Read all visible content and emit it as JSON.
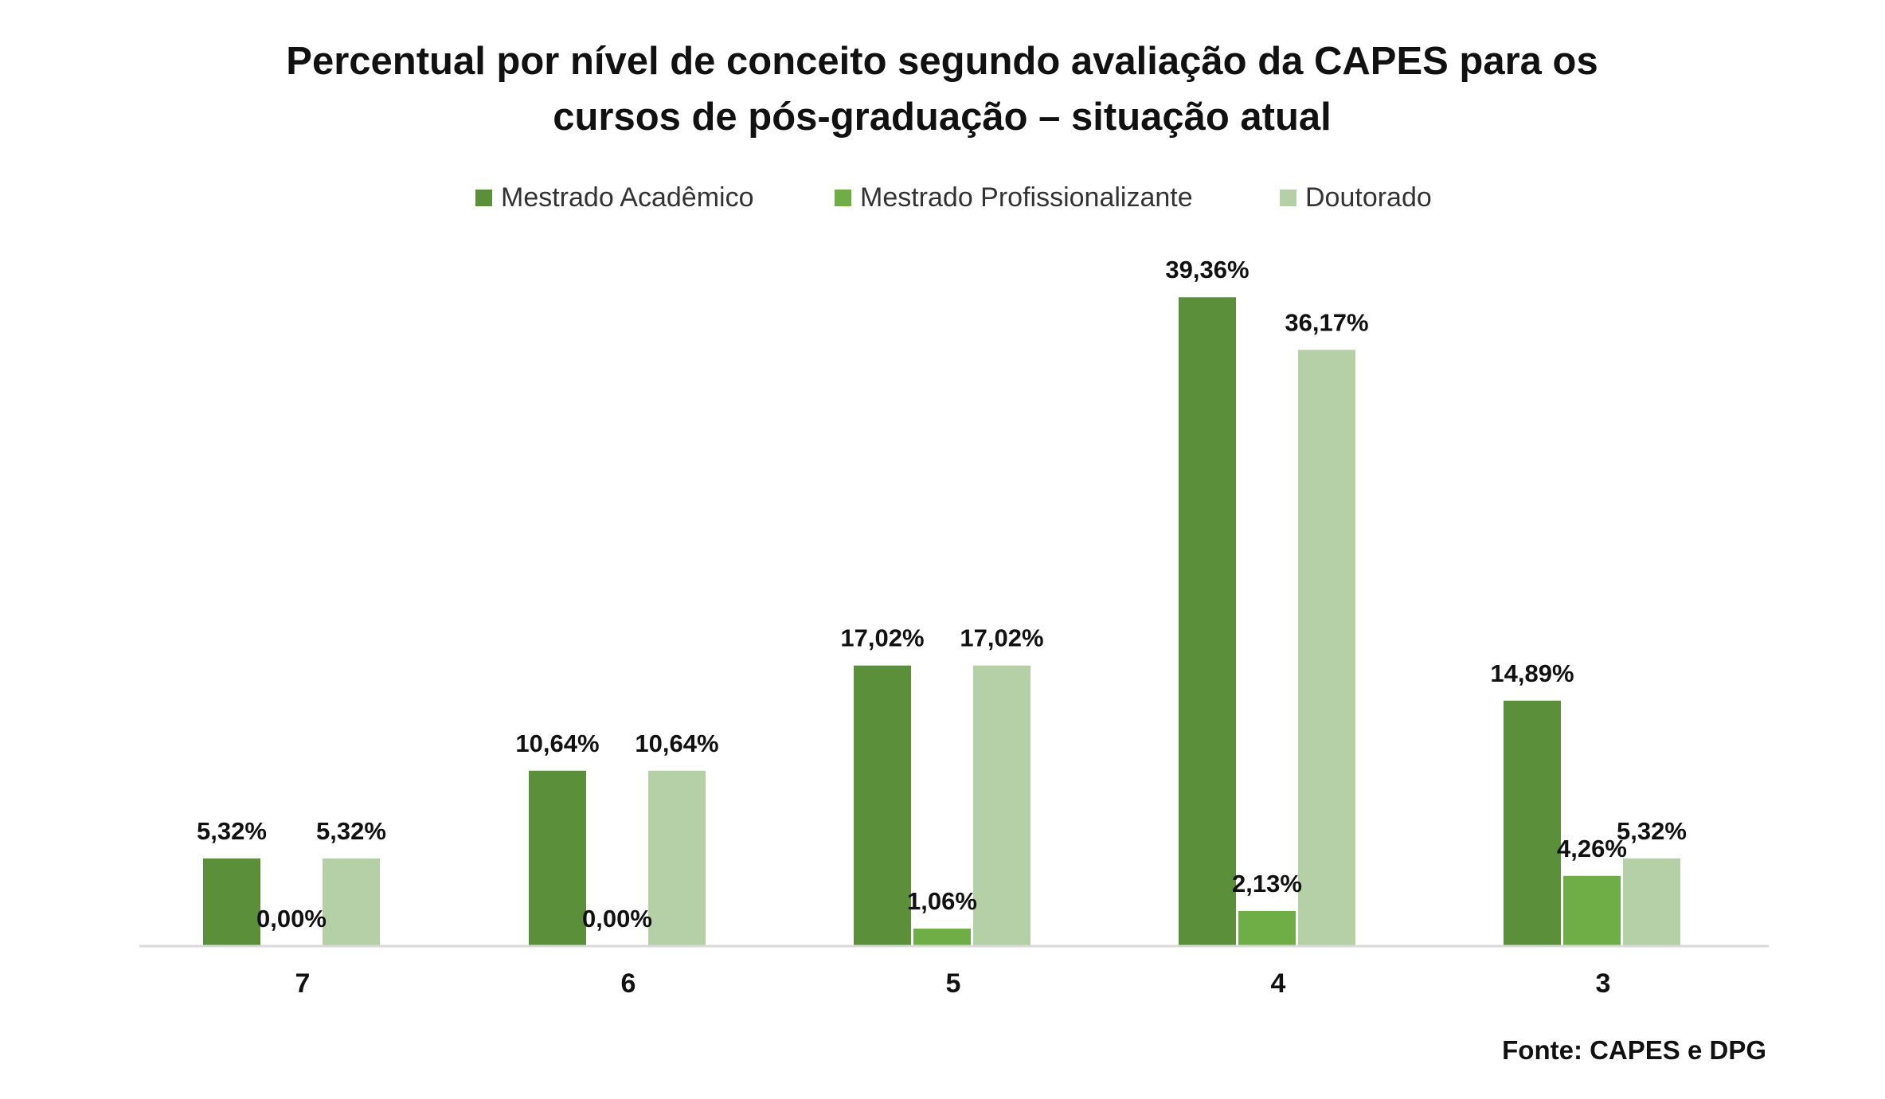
{
  "chart_data": {
    "type": "bar",
    "title": "Percentual por nível de conceito segundo avaliação da CAPES para os",
    "subtitle": "cursos de pós-graduação – situação atual",
    "categories": [
      "7",
      "6",
      "5",
      "4",
      "3"
    ],
    "series": [
      {
        "name": "Mestrado Acadêmico",
        "color": "#5b8f3a",
        "values": [
          5.32,
          10.64,
          17.02,
          39.36,
          14.89
        ],
        "labels": [
          "5,32%",
          "10,64%",
          "17,02%",
          "39,36%",
          "14,89%"
        ]
      },
      {
        "name": "Mestrado Profissionalizante",
        "color": "#6fae46",
        "values": [
          0.0,
          0.0,
          1.06,
          2.13,
          4.26
        ],
        "labels": [
          "0,00%",
          "0,00%",
          "1,06%",
          "2,13%",
          "4,26%"
        ]
      },
      {
        "name": "Doutorado",
        "color": "#b5d0a7",
        "values": [
          5.32,
          10.64,
          17.02,
          36.17,
          5.32
        ],
        "labels": [
          "5,32%",
          "10,64%",
          "17,02%",
          "36,17%",
          "5,32%"
        ]
      }
    ],
    "ylim": [
      0,
      40
    ],
    "grid": false,
    "legend_position": "top-center",
    "footer": "Fonte: CAPES e DPG"
  }
}
